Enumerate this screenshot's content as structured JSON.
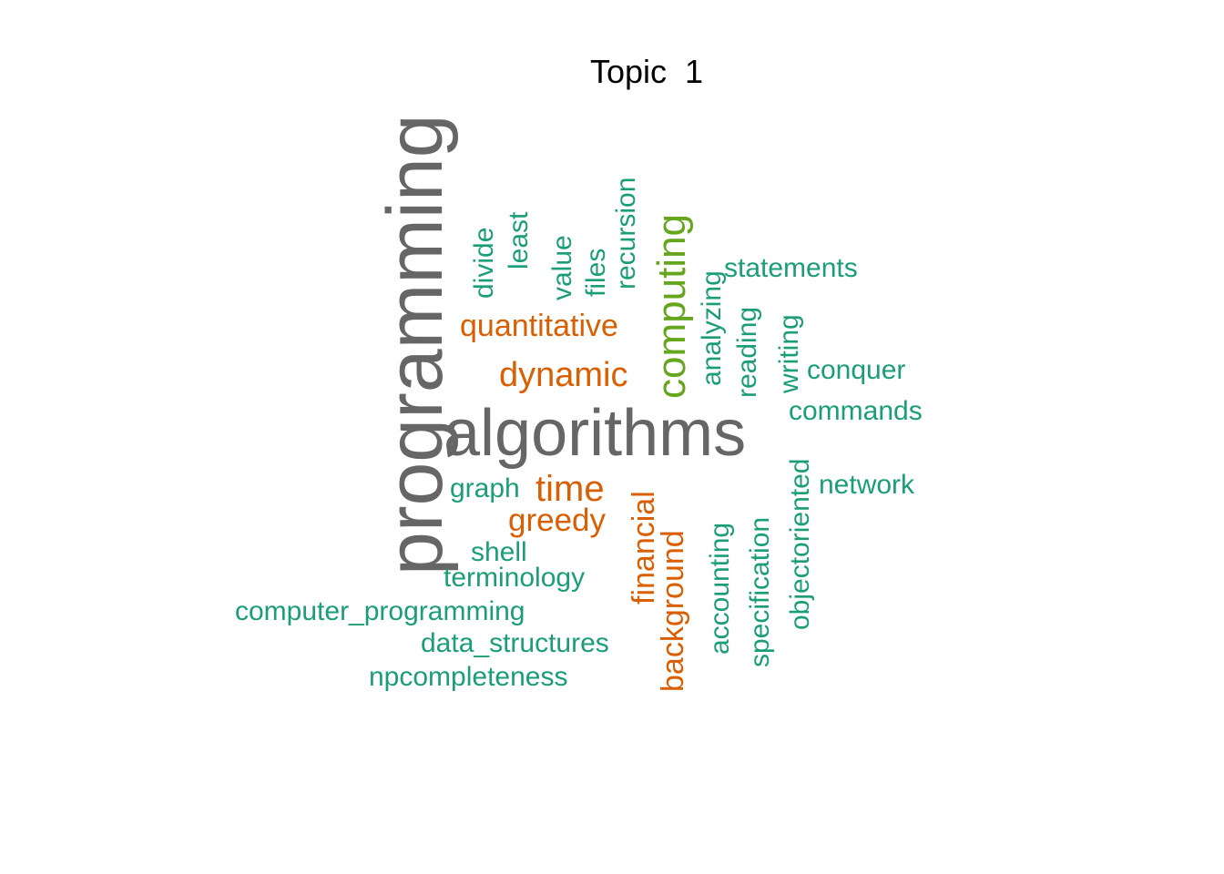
{
  "title": "Topic  1",
  "palette": {
    "gray": "#666666",
    "olive": "#66A61E",
    "orange": "#D95F02",
    "teal": "#1B9E77"
  },
  "words": [
    {
      "text": "programming",
      "color": "gray",
      "rotated": true
    },
    {
      "text": "algorithms",
      "color": "gray",
      "rotated": false
    },
    {
      "text": "computing",
      "color": "olive",
      "rotated": true
    },
    {
      "text": "quantitative",
      "color": "orange",
      "rotated": false
    },
    {
      "text": "dynamic",
      "color": "orange",
      "rotated": false
    },
    {
      "text": "time",
      "color": "orange",
      "rotated": false
    },
    {
      "text": "greedy",
      "color": "orange",
      "rotated": false
    },
    {
      "text": "financial",
      "color": "orange",
      "rotated": true
    },
    {
      "text": "background",
      "color": "orange",
      "rotated": true
    },
    {
      "text": "divide",
      "color": "teal",
      "rotated": true
    },
    {
      "text": "least",
      "color": "teal",
      "rotated": true
    },
    {
      "text": "value",
      "color": "teal",
      "rotated": true
    },
    {
      "text": "files",
      "color": "teal",
      "rotated": true
    },
    {
      "text": "recursion",
      "color": "teal",
      "rotated": true
    },
    {
      "text": "analyzing",
      "color": "teal",
      "rotated": true
    },
    {
      "text": "reading",
      "color": "teal",
      "rotated": true
    },
    {
      "text": "writing",
      "color": "teal",
      "rotated": true
    },
    {
      "text": "statements",
      "color": "teal",
      "rotated": false
    },
    {
      "text": "conquer",
      "color": "teal",
      "rotated": false
    },
    {
      "text": "commands",
      "color": "teal",
      "rotated": false
    },
    {
      "text": "network",
      "color": "teal",
      "rotated": false
    },
    {
      "text": "objectoriented",
      "color": "teal",
      "rotated": true
    },
    {
      "text": "specification",
      "color": "teal",
      "rotated": true
    },
    {
      "text": "accounting",
      "color": "teal",
      "rotated": true
    },
    {
      "text": "graph",
      "color": "teal",
      "rotated": false
    },
    {
      "text": "shell",
      "color": "teal",
      "rotated": false
    },
    {
      "text": "terminology",
      "color": "teal",
      "rotated": false
    },
    {
      "text": "computer_programming",
      "color": "teal",
      "rotated": false
    },
    {
      "text": "data_structures",
      "color": "teal",
      "rotated": false
    },
    {
      "text": "npcompleteness",
      "color": "teal",
      "rotated": false
    }
  ]
}
